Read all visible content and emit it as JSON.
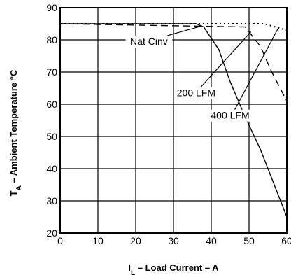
{
  "chart_data": {
    "type": "line",
    "xlabel": "I_L – Load Current – A",
    "ylabel": "T_A – Ambient Temperature °C",
    "xlabel_parts": {
      "main": "I",
      "sub": "L",
      "rest": " – Load Current – A"
    },
    "ylabel_parts": {
      "main": "T",
      "sub": "A",
      "rest": " – Ambient Temperature °C"
    },
    "xlim": [
      0,
      60
    ],
    "ylim": [
      20,
      90
    ],
    "xticks": [
      0,
      10,
      20,
      30,
      40,
      50,
      60
    ],
    "yticks": [
      20,
      30,
      40,
      50,
      60,
      70,
      80,
      90
    ],
    "grid": true,
    "series": [
      {
        "name": "Nat Cinv",
        "style": "solid",
        "x": [
          0,
          36,
          38,
          42,
          45,
          49,
          53,
          57,
          60
        ],
        "y": [
          85,
          85,
          84,
          77,
          67,
          56,
          46,
          34,
          25
        ]
      },
      {
        "name": "200 LFM",
        "style": "dashed",
        "x": [
          0,
          49,
          53,
          56,
          60
        ],
        "y": [
          85,
          84,
          78,
          70,
          61
        ]
      },
      {
        "name": "400 LFM",
        "style": "dotted",
        "x": [
          0,
          54,
          57,
          60
        ],
        "y": [
          85,
          85,
          84,
          83
        ]
      }
    ],
    "annotations": [
      {
        "text": "Nat Cinv",
        "series": 0,
        "label_at": [
          23.5,
          78.5
        ],
        "arrow_to": [
          37.5,
          84.3
        ]
      },
      {
        "text": "200 LFM",
        "series": 1,
        "label_at": [
          36,
          62.5
        ],
        "arrow_to": [
          50.5,
          82.5
        ]
      },
      {
        "text": "400 LFM",
        "series": 2,
        "label_at": [
          45,
          55.5
        ],
        "arrow_to": [
          57.8,
          83.8
        ]
      }
    ]
  }
}
